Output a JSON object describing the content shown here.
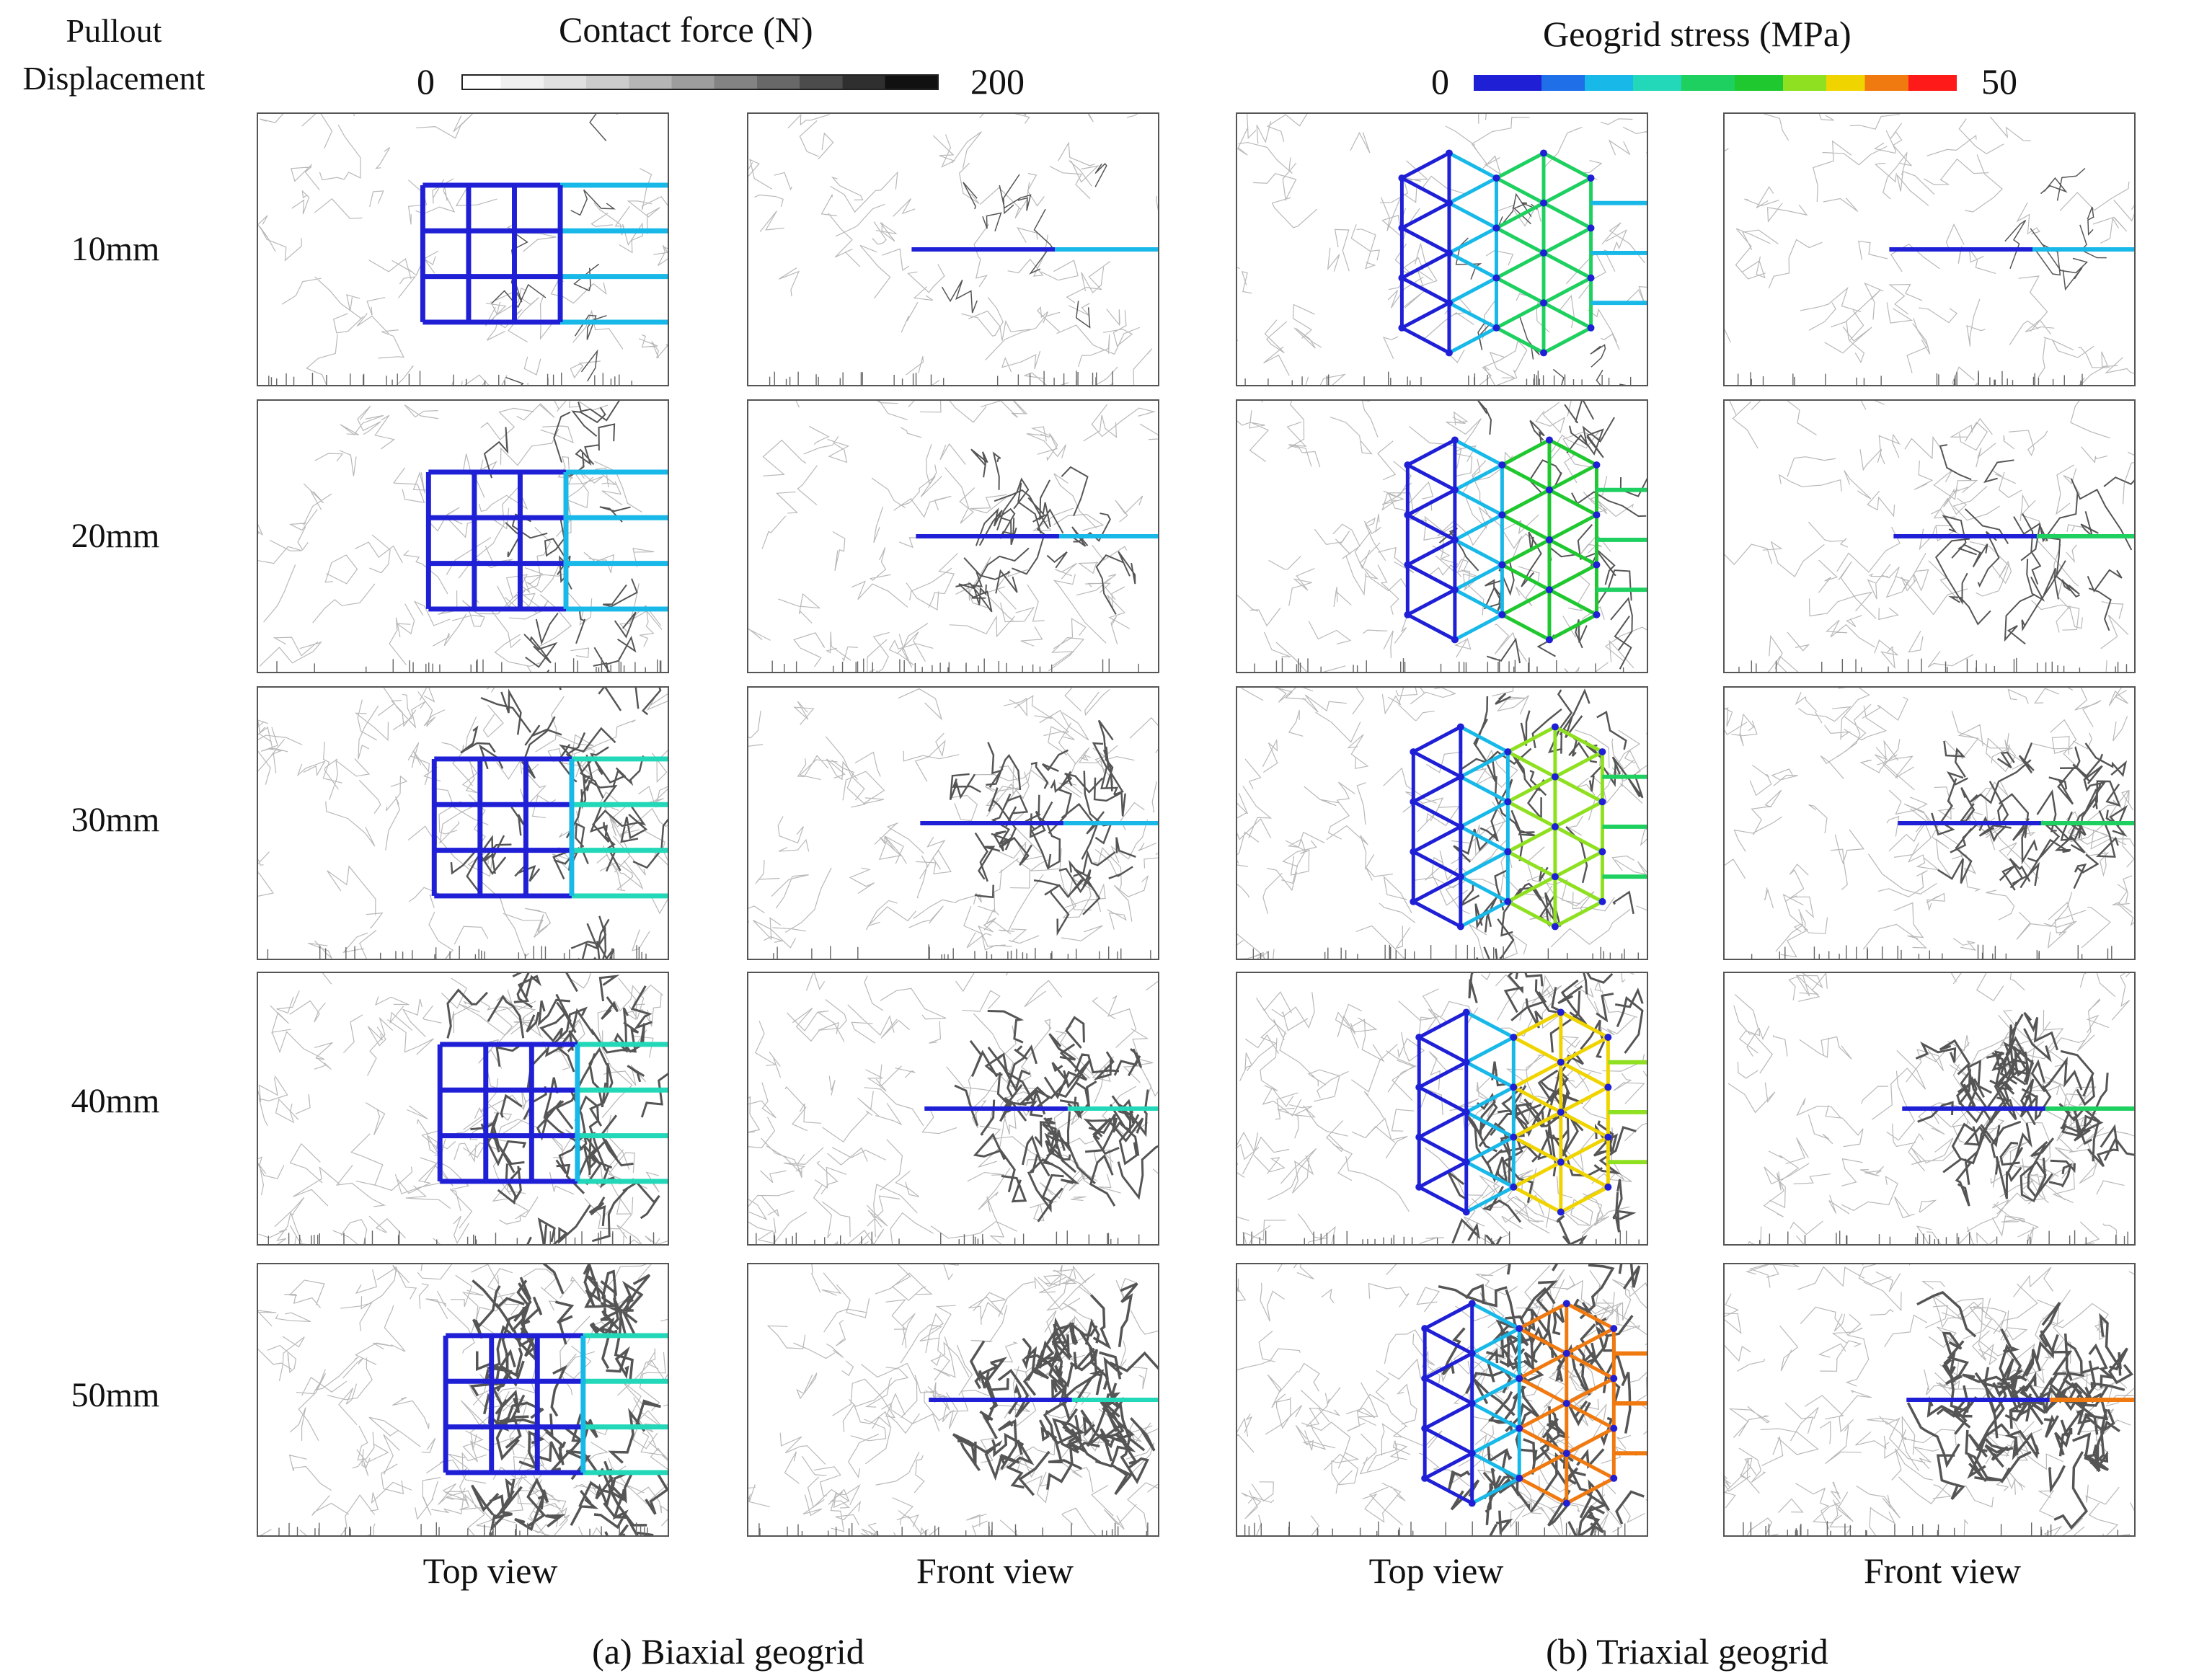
{
  "side_header": {
    "line1": "Pullout",
    "line2": "Displacement"
  },
  "legend_contact": {
    "title": "Contact force (N)",
    "min": "0",
    "max": "200",
    "colors": [
      "#ffffff",
      "#f0f0f0",
      "#e0e0e0",
      "#cccccc",
      "#b5b5b5",
      "#9d9d9d",
      "#838383",
      "#686868",
      "#4c4c4c",
      "#2f2f2f",
      "#111111"
    ]
  },
  "legend_stress": {
    "title": "Geogrid stress (MPa)",
    "min": "0",
    "max": "50",
    "colors": [
      "#1f1fd6",
      "#1e6fe8",
      "#18b8e8",
      "#22d8b8",
      "#1ed060",
      "#20c830",
      "#8fe020",
      "#f0d400",
      "#f07a10",
      "#ff1a1a"
    ]
  },
  "rows": [
    "10mm",
    "20mm",
    "30mm",
    "40mm",
    "50mm"
  ],
  "column_labels": [
    "Top view",
    "Front view",
    "Top view",
    "Front view"
  ],
  "captions": {
    "biaxial": "(a) Biaxial geogrid",
    "triaxial": "(b) Triaxial geogrid"
  }
}
